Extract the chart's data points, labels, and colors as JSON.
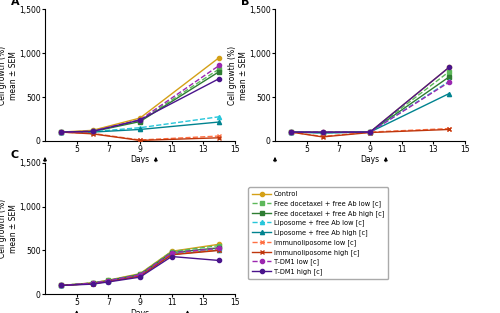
{
  "panel_A": {
    "title": "A",
    "days": [
      4,
      6,
      9,
      14
    ],
    "arrow_days": [
      3,
      10
    ],
    "series": {
      "Control": [
        100,
        120,
        260,
        950
      ],
      "Free doc + Ab low": [
        100,
        110,
        230,
        820
      ],
      "Free doc + Ab high": [
        100,
        105,
        220,
        790
      ],
      "Lipo + Ab low": [
        100,
        105,
        150,
        275
      ],
      "Lipo + Ab high": [
        100,
        100,
        130,
        215
      ],
      "Immunolipo low": [
        100,
        85,
        10,
        55
      ],
      "Immunolipo high": [
        100,
        80,
        5,
        35
      ],
      "T-DM1 low": [
        100,
        110,
        240,
        860
      ],
      "T-DM1 high": [
        100,
        108,
        238,
        710
      ]
    }
  },
  "panel_B": {
    "title": "B",
    "days": [
      4,
      6,
      9,
      14
    ],
    "arrow_days": [
      3,
      10
    ],
    "series": {
      "Control": [
        100,
        100,
        100,
        840
      ],
      "Free doc + Ab low": [
        100,
        95,
        100,
        790
      ],
      "Free doc + Ab high": [
        100,
        95,
        100,
        730
      ],
      "Lipo + Ab low": [
        100,
        95,
        100,
        680
      ],
      "Lipo + Ab high": [
        100,
        90,
        100,
        540
      ],
      "Immunolipo low": [
        100,
        50,
        100,
        140
      ],
      "Immunolipo high": [
        100,
        45,
        95,
        130
      ],
      "T-DM1 low": [
        100,
        98,
        100,
        670
      ],
      "T-DM1 high": [
        100,
        100,
        100,
        840
      ]
    }
  },
  "panel_C": {
    "title": "C",
    "days": [
      4,
      6,
      7,
      9,
      11,
      14
    ],
    "arrow_days": [
      5,
      12
    ],
    "series": {
      "Control": [
        100,
        130,
        160,
        235,
        490,
        570
      ],
      "Free doc + Ab low": [
        100,
        128,
        158,
        230,
        487,
        555
      ],
      "Free doc + Ab high": [
        100,
        126,
        155,
        225,
        475,
        530
      ],
      "Lipo + Ab low": [
        100,
        125,
        153,
        218,
        465,
        515
      ],
      "Lipo + Ab high": [
        100,
        123,
        150,
        213,
        455,
        505
      ],
      "Immunolipo low": [
        100,
        122,
        148,
        210,
        455,
        510
      ],
      "Immunolipo high": [
        100,
        120,
        146,
        207,
        450,
        500
      ],
      "T-DM1 low": [
        100,
        126,
        155,
        222,
        472,
        525
      ],
      "T-DM1 high": [
        100,
        115,
        140,
        195,
        430,
        385
      ]
    }
  },
  "series_styles": {
    "Control": {
      "color": "#D4A017",
      "linestyle": "-",
      "marker": "o"
    },
    "Free doc + Ab low": {
      "color": "#5DB85A",
      "linestyle": "--",
      "marker": "s"
    },
    "Free doc + Ab high": {
      "color": "#2E7D32",
      "linestyle": "-",
      "marker": "s"
    },
    "Lipo + Ab low": {
      "color": "#26C6DA",
      "linestyle": "--",
      "marker": "^"
    },
    "Lipo + Ab high": {
      "color": "#00838F",
      "linestyle": "-",
      "marker": "^"
    },
    "Immunolipo low": {
      "color": "#FF7043",
      "linestyle": "--",
      "marker": "x"
    },
    "Immunolipo high": {
      "color": "#BF360C",
      "linestyle": "-",
      "marker": "x"
    },
    "T-DM1 low": {
      "color": "#9C27B0",
      "linestyle": "--",
      "marker": "o"
    },
    "T-DM1 high": {
      "color": "#4A148C",
      "linestyle": "-",
      "marker": "o"
    }
  },
  "legend_labels": [
    "Control",
    "Free docetaxel + free Ab low [c]",
    "Free docetaxel + free Ab high [c]",
    "Liposome + free Ab low [c]",
    "Liposome + free Ab high [c]",
    "Immunoliposome low [c]",
    "Immunoliposome high [c]",
    "T-DM1 low [c]",
    "T-DM1 high [c]"
  ],
  "ylabel": "Cell growth (%)\nmean ± SEM",
  "xlabel": "Days",
  "ylim": [
    0,
    1500
  ],
  "yticks": [
    0,
    500,
    1000,
    1500
  ],
  "xlim": [
    3,
    15
  ],
  "xticks": [
    5,
    7,
    9,
    11,
    13,
    15
  ],
  "background_color": "#ffffff",
  "linewidth": 1.0,
  "markersize": 3.0
}
